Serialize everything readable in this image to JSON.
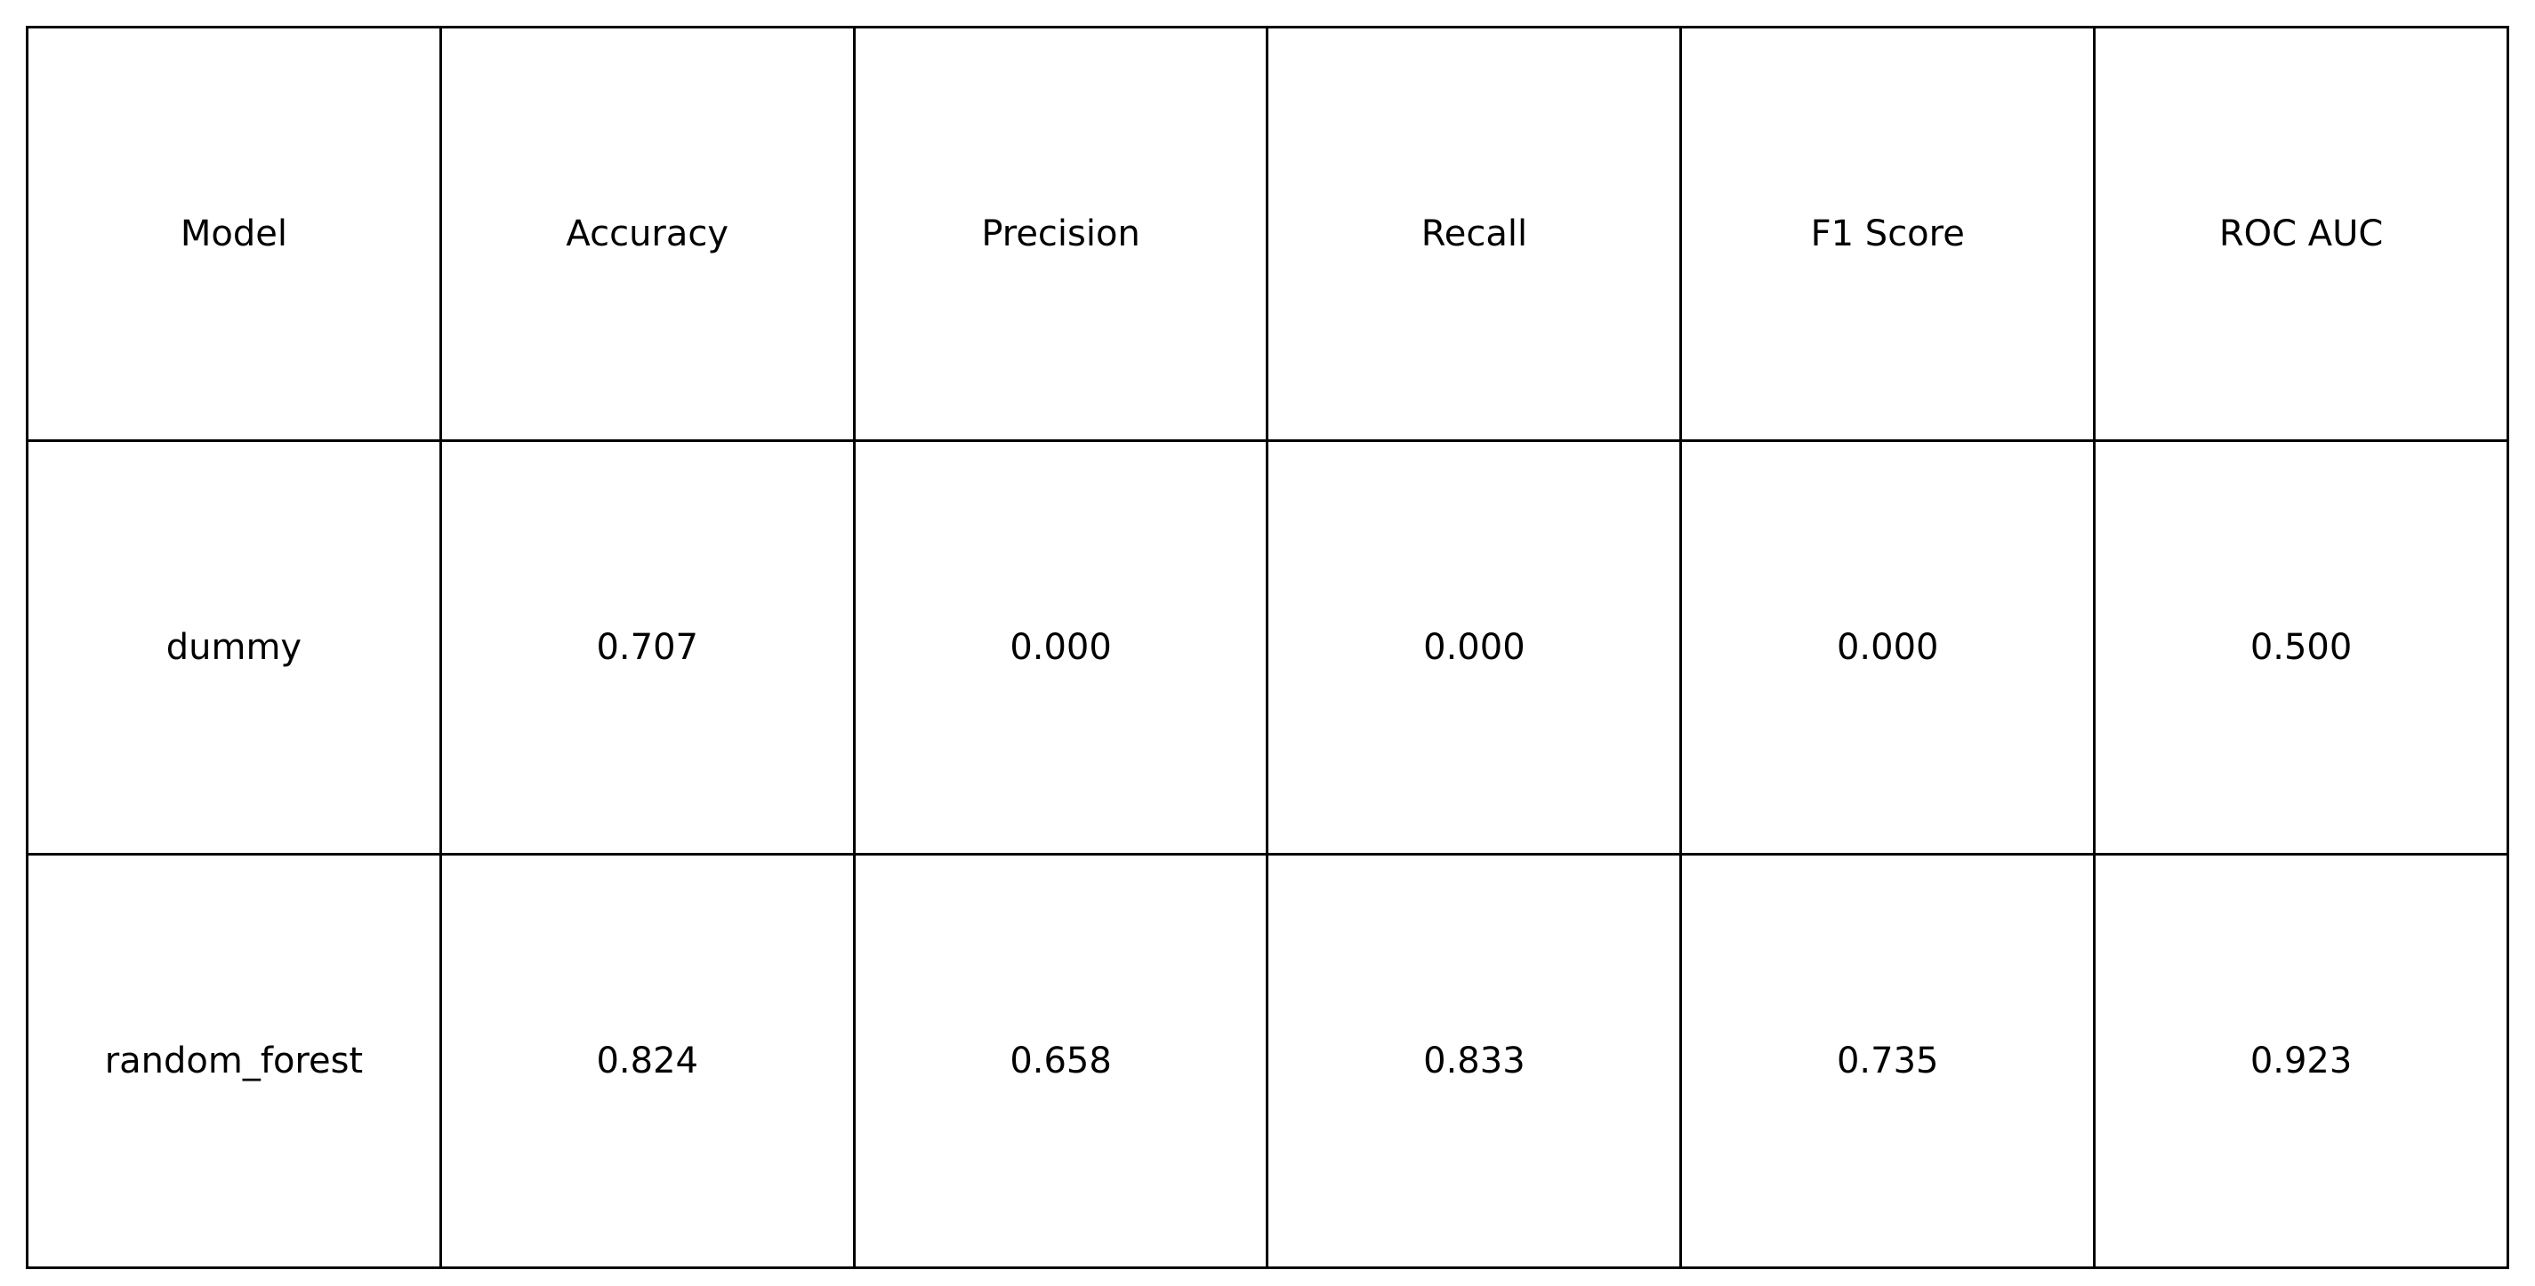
{
  "chart_data": {
    "type": "table",
    "columns": [
      "Model",
      "Accuracy",
      "Precision",
      "Recall",
      "F1 Score",
      "ROC AUC"
    ],
    "rows": [
      [
        "dummy",
        "0.707",
        "0.000",
        "0.000",
        "0.000",
        "0.500"
      ],
      [
        "random_forest",
        "0.824",
        "0.658",
        "0.833",
        "0.735",
        "0.923"
      ]
    ],
    "colors": {
      "border": "#000000",
      "text": "#000000",
      "background": "#ffffff"
    }
  }
}
